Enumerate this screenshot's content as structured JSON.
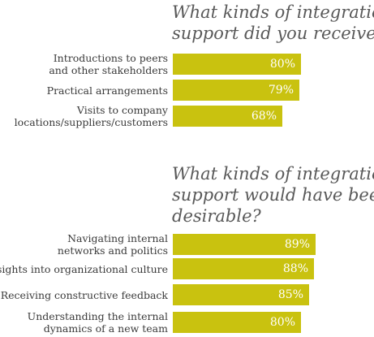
{
  "colors": {
    "bar": "#c9c20f",
    "title": "#595959",
    "label": "#3a3a3a",
    "value_text": "#ffffff"
  },
  "chart_data": [
    {
      "type": "bar",
      "orientation": "horizontal",
      "title": "What kinds of integration support did you receive?",
      "categories": [
        "Introductions to peers and other stakeholders",
        "Practical arrangements",
        "Visits to company locations/suppliers/customers"
      ],
      "values": [
        80,
        79,
        68
      ],
      "value_labels": [
        "80%",
        "79%",
        "68%"
      ],
      "grid": false
    },
    {
      "type": "bar",
      "orientation": "horizontal",
      "title": "What kinds of integration support would have been desirable?",
      "categories": [
        "Navigating internal networks and politics",
        "Insights into organizational culture",
        "Receiving constructive feedback",
        "Understanding the internal dynamics of a new team"
      ],
      "values": [
        89,
        88,
        85,
        80
      ],
      "value_labels": [
        "89%",
        "88%",
        "85%",
        "80%"
      ],
      "grid": false
    }
  ],
  "display": {
    "title_lines": [
      [
        "What kinds of integration",
        "support did you receive?"
      ],
      [
        "What kinds of integration",
        "support would have been",
        "desirable?"
      ]
    ],
    "label_lines": [
      [
        [
          "Introductions to peers",
          "and other stakeholders"
        ],
        [
          "Practical arrangements"
        ],
        [
          "Visits to company",
          "locations/suppliers/customers"
        ]
      ],
      [
        [
          "Navigating internal",
          "networks and politics"
        ],
        [
          "Insights into organizational culture"
        ],
        [
          "Receiving constructive feedback"
        ],
        [
          "Understanding the internal",
          "dynamics of a new team"
        ]
      ]
    ]
  }
}
